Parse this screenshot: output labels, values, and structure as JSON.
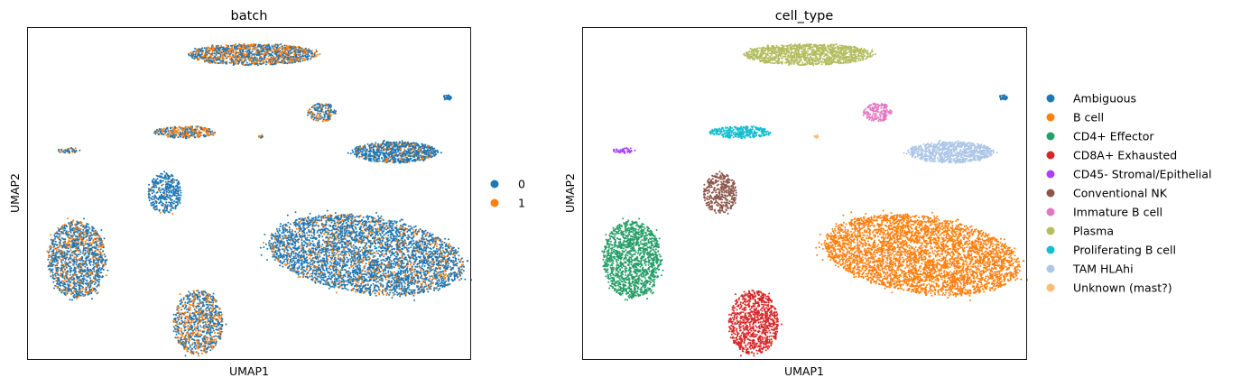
{
  "chart_data": [
    {
      "type": "scatter",
      "title": "batch",
      "xlabel": "UMAP1",
      "ylabel": "UMAP2",
      "grid": false,
      "ticks": "none",
      "legend_position": "right",
      "legend": [
        {
          "label": "0",
          "color": "#1f77b4"
        },
        {
          "label": "1",
          "color": "#ff7f0e"
        }
      ],
      "clusters": [
        {
          "cell_type": "Plasma",
          "shape": "ellipse",
          "cx": 0.51,
          "cy": 0.92,
          "rx": 0.145,
          "ry": 0.032,
          "n": 1300,
          "mix": [
            0.55,
            0.45
          ]
        },
        {
          "cell_type": "Ambiguous",
          "shape": "ellipse",
          "cx": 0.948,
          "cy": 0.79,
          "rx": 0.011,
          "ry": 0.008,
          "n": 40,
          "mix": [
            1.0,
            0.0
          ]
        },
        {
          "cell_type": "Immature B cell",
          "shape": "ellipse",
          "cx": 0.665,
          "cy": 0.745,
          "rx": 0.032,
          "ry": 0.028,
          "n": 180,
          "mix": [
            0.6,
            0.4
          ]
        },
        {
          "cell_type": "Proliferating B cell",
          "shape": "ellipse",
          "cx": 0.355,
          "cy": 0.685,
          "rx": 0.07,
          "ry": 0.018,
          "n": 320,
          "mix": [
            0.45,
            0.55
          ]
        },
        {
          "cell_type": "Unknown (mast?)",
          "shape": "ellipse",
          "cx": 0.528,
          "cy": 0.672,
          "rx": 0.006,
          "ry": 0.006,
          "n": 12,
          "mix": [
            0.7,
            0.3
          ]
        },
        {
          "cell_type": "CD45- Stromal/Epithelial",
          "shape": "ellipse",
          "cx": 0.092,
          "cy": 0.63,
          "rx": 0.025,
          "ry": 0.008,
          "n": 50,
          "mix": [
            0.6,
            0.4
          ]
        },
        {
          "cell_type": "TAM HLAhi",
          "shape": "ellipse",
          "cx": 0.83,
          "cy": 0.625,
          "rx": 0.097,
          "ry": 0.032,
          "n": 900,
          "mix": [
            0.78,
            0.22
          ]
        },
        {
          "cell_type": "Conventional NK",
          "shape": "ellipse",
          "cx": 0.31,
          "cy": 0.5,
          "rx": 0.038,
          "ry": 0.062,
          "n": 380,
          "mix": [
            0.95,
            0.05
          ]
        },
        {
          "cell_type": "B cell",
          "shape": "ellipse",
          "cx": 0.765,
          "cy": 0.315,
          "rx": 0.225,
          "ry": 0.115,
          "rot": -12,
          "n": 4200,
          "mix": [
            0.8,
            0.2
          ]
        },
        {
          "cell_type": "CD4+ Effector",
          "shape": "ellipse",
          "cx": 0.11,
          "cy": 0.3,
          "rx": 0.066,
          "ry": 0.117,
          "n": 1400,
          "mix": [
            0.72,
            0.28
          ]
        },
        {
          "cell_type": "CD8A+ Exhausted",
          "shape": "ellipse",
          "cx": 0.385,
          "cy": 0.11,
          "rx": 0.056,
          "ry": 0.097,
          "n": 900,
          "mix": [
            0.62,
            0.38
          ]
        }
      ]
    },
    {
      "type": "scatter",
      "title": "cell_type",
      "xlabel": "UMAP1",
      "ylabel": "UMAP2",
      "grid": false,
      "ticks": "none",
      "legend_position": "right",
      "legend": [
        {
          "label": "Ambiguous",
          "color": "#1f77b4"
        },
        {
          "label": "B cell",
          "color": "#ff7f0e"
        },
        {
          "label": "CD4+ Effector",
          "color": "#279e68"
        },
        {
          "label": "CD8A+ Exhausted",
          "color": "#d62728"
        },
        {
          "label": "CD45- Stromal/Epithelial",
          "color": "#aa40fc"
        },
        {
          "label": "Conventional NK",
          "color": "#8c564b"
        },
        {
          "label": "Immature B cell",
          "color": "#e377c2"
        },
        {
          "label": "Plasma",
          "color": "#b5bd61"
        },
        {
          "label": "Proliferating B cell",
          "color": "#17becf"
        },
        {
          "label": "TAM HLAhi",
          "color": "#aec7e8"
        },
        {
          "label": "Unknown (mast?)",
          "color": "#ffbb78"
        }
      ]
    }
  ]
}
